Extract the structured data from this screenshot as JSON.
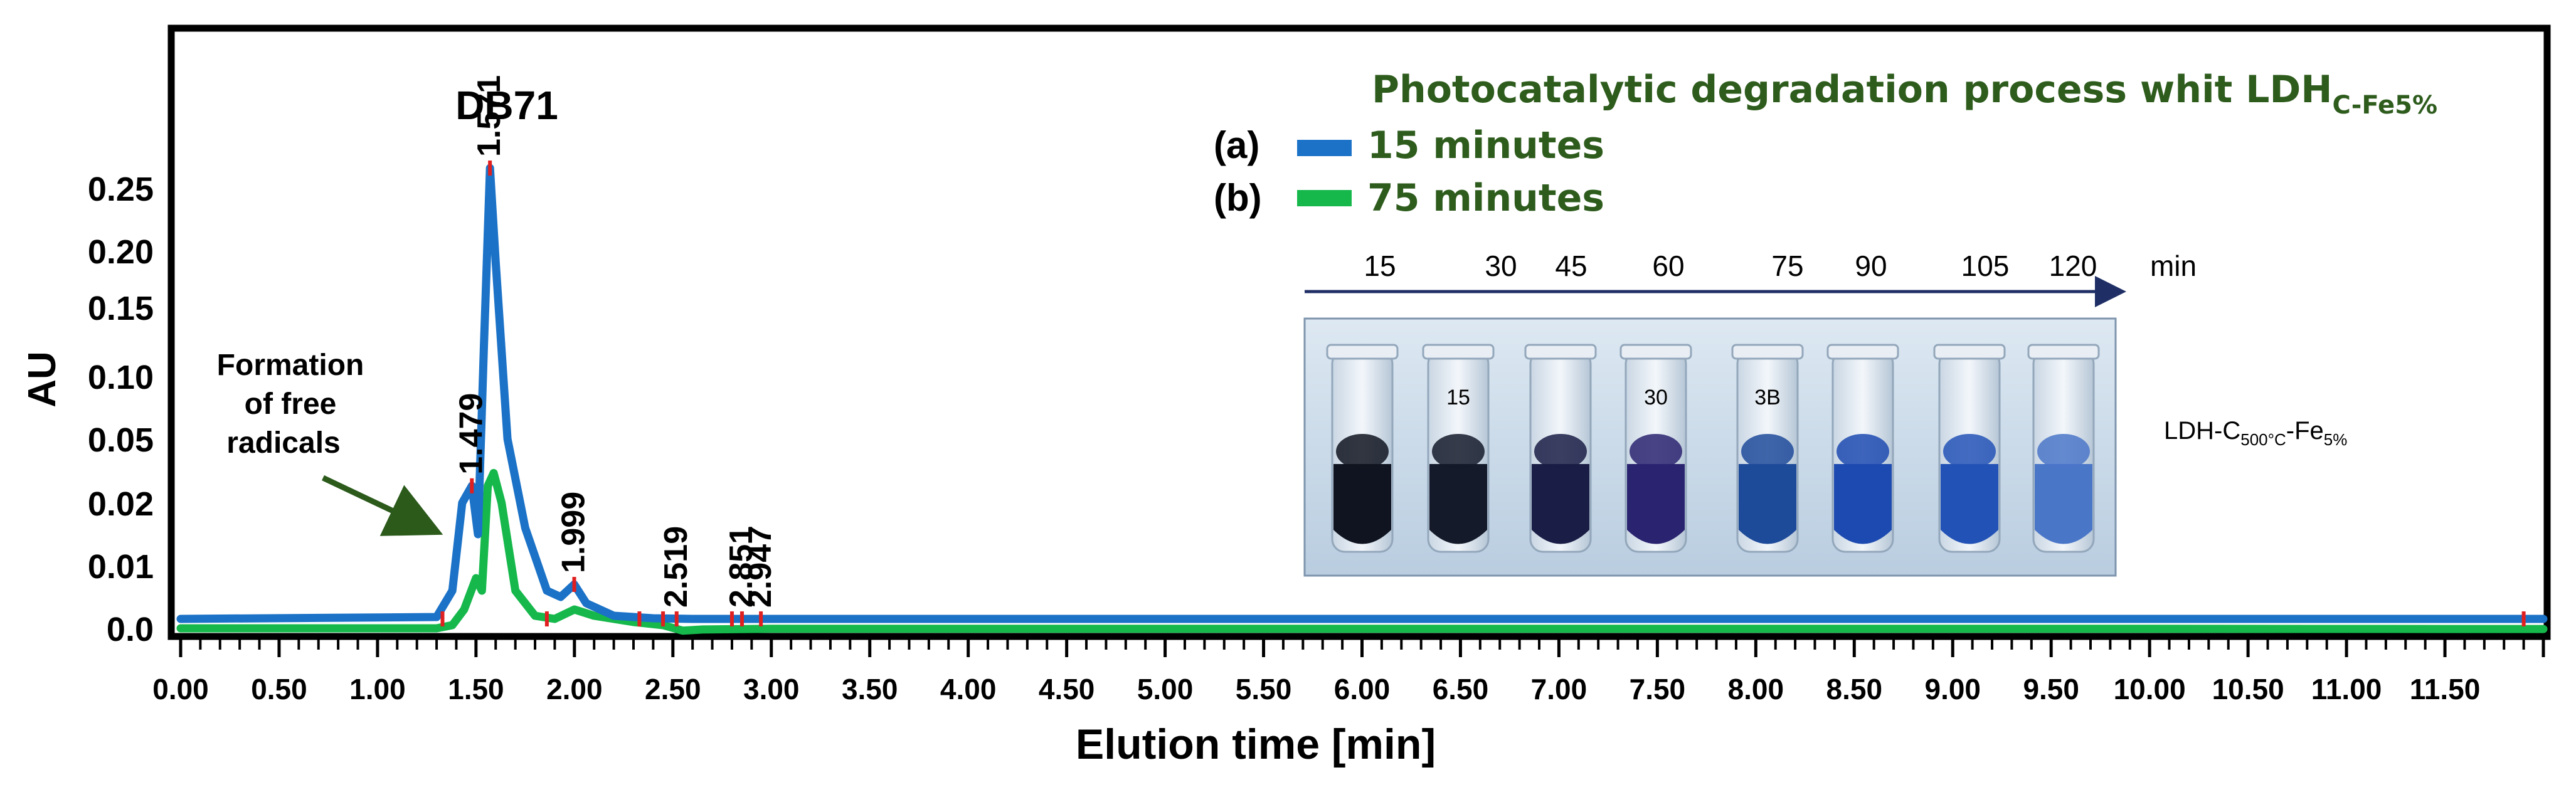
{
  "chart_data": {
    "type": "line",
    "title": "DB71",
    "xlabel": "Elution time [min]",
    "ylabel": "AU",
    "xlim": [
      0.0,
      12.0
    ],
    "x_ticks": [
      "0.00",
      "0.50",
      "1.00",
      "1.50",
      "2.00",
      "2.50",
      "3.00",
      "3.50",
      "4.00",
      "4.50",
      "5.00",
      "5.50",
      "6.00",
      "6.50",
      "7.00",
      "7.50",
      "8.00",
      "8.50",
      "9.00",
      "9.50",
      "10.00",
      "10.50",
      "11.00",
      "11.50"
    ],
    "y_ticks": [
      "0.0",
      "0.01",
      "0.02",
      "0.05",
      "0.10",
      "0.15",
      "0.20",
      "0.25"
    ],
    "y_scale": "non-linear (tick labels irregularly spaced)",
    "grid": false,
    "legend_title_main": "Photocatalytic degradation process  whit LDH",
    "legend_title_sub": "C-Fe5%",
    "series": [
      {
        "name": "15 minutes",
        "tag": "(a)",
        "color": "#1b72c7",
        "x": [
          0.0,
          1.3,
          1.38,
          1.43,
          1.479,
          1.51,
          1.54,
          1.571,
          1.6,
          1.66,
          1.75,
          1.86,
          1.93,
          1.999,
          2.06,
          2.2,
          2.4,
          2.6,
          3.0,
          6.0,
          10.0,
          11.5,
          12.0
        ],
        "y": [
          0.0015,
          0.0018,
          0.006,
          0.02,
          0.028,
          0.015,
          0.12,
          0.27,
          0.19,
          0.05,
          0.016,
          0.006,
          0.005,
          0.007,
          0.004,
          0.002,
          0.0016,
          0.0015,
          0.0015,
          0.0015,
          0.0015,
          0.0015,
          0.0015
        ]
      },
      {
        "name": "75 minutes",
        "tag": "(b)",
        "color": "#16b84c",
        "x": [
          0.0,
          1.3,
          1.38,
          1.44,
          1.5,
          1.53,
          1.56,
          1.59,
          1.63,
          1.7,
          1.8,
          1.9,
          2.0,
          2.1,
          2.3,
          2.45,
          2.55,
          2.65,
          3.0,
          6.0,
          10.0,
          11.5,
          12.0
        ],
        "y": [
          0.0,
          0.0,
          0.0005,
          0.003,
          0.008,
          0.006,
          0.028,
          0.034,
          0.02,
          0.006,
          0.002,
          0.0015,
          0.003,
          0.002,
          0.001,
          0.0005,
          -0.001,
          -0.0005,
          -0.0002,
          -0.0002,
          -0.0002,
          -0.0003,
          -0.0003
        ]
      }
    ],
    "peak_labels": [
      "1.479",
      "1.571",
      "1.999",
      "2.519",
      "2.851",
      "2.947"
    ],
    "annotation": "Formation\nof free\nradicals",
    "inset": {
      "time_labels": [
        "15",
        "30",
        "45",
        "60",
        "75",
        "90",
        "105",
        "120"
      ],
      "unit": "min",
      "caption_main": "LDH-C",
      "caption_sub1": "500°C",
      "caption_mid": "-Fe",
      "caption_sub2": "5%",
      "vial_labels": [
        "",
        "15",
        "",
        "30",
        "3B",
        "",
        "",
        ""
      ]
    }
  }
}
